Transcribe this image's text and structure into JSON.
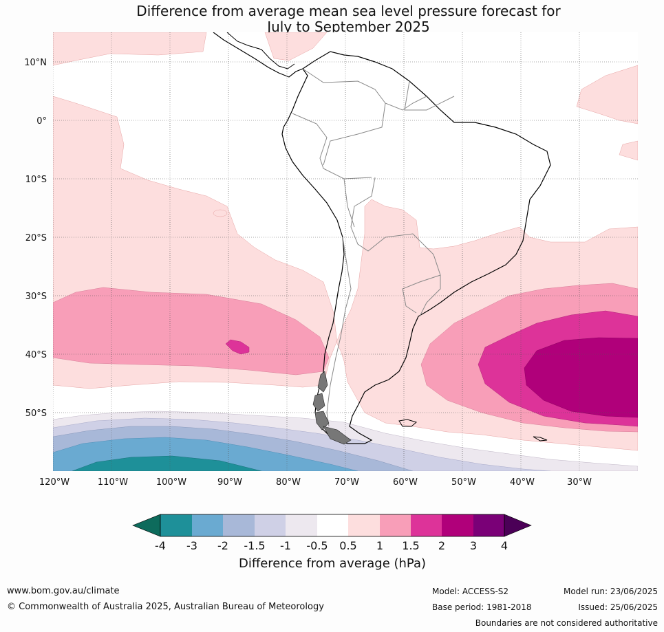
{
  "title_line1": "Difference from average mean sea level pressure forecast for",
  "title_line2": "July to September 2025",
  "map": {
    "lat_labels": [
      "10°N",
      "0°",
      "10°S",
      "20°S",
      "30°S",
      "40°S",
      "50°S"
    ],
    "lon_labels": [
      "120°W",
      "110°W",
      "100°W",
      "90°W",
      "80°W",
      "70°W",
      "60°W",
      "50°W",
      "40°W",
      "30°W"
    ],
    "extent": {
      "lon": [
        -120,
        -20
      ],
      "lat": [
        -60,
        15
      ]
    }
  },
  "colorbar": {
    "title": "Difference from average (hPa)",
    "ticks": [
      "-4",
      "-3",
      "-2",
      "-1.5",
      "-1",
      "-0.5",
      "0.5",
      "1",
      "1.5",
      "2",
      "3",
      "4"
    ],
    "colors": {
      "below_-4": "#0d6b5c",
      "-4_to_-3": "#1e9099",
      "-3_to_-2": "#6aaad1",
      "-2_to_-1.5": "#a8b8d8",
      "-1.5_to_-1": "#cfd0e6",
      "-1_to_-0.5": "#ede8ef",
      "-0.5_to_0.5": "#ffffff",
      "0.5_to_1": "#fddede",
      "1_to_1.5": "#f89eb8",
      "1.5_to_2": "#dd3399",
      "2_to_3": "#b0007a",
      "3_to_4": "#7a0077",
      "above_4": "#4b0057"
    }
  },
  "footer": {
    "website": "www.bom.gov.au/climate",
    "copyright": "© Commonwealth of Australia 2025, Australian Bureau of Meteorology",
    "model": "Model: ACCESS-S2",
    "base_period": "Base period: 1981-2018",
    "model_run": "Model run: 23/06/2025",
    "issued": "Issued: 25/06/2025",
    "disclaimer": "Boundaries are not considered authoritative"
  }
}
